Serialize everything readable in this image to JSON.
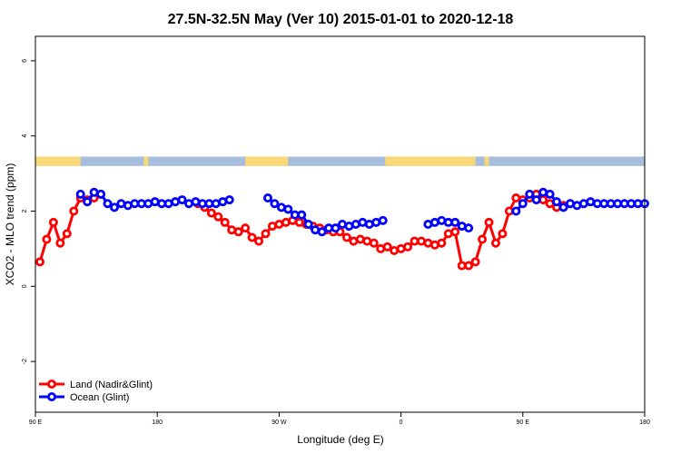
{
  "chart_data": {
    "type": "line",
    "title": "27.5N-32.5N May (Ver 10)   2015-01-01 to 2020-12-18",
    "xlabel": "Longitude (deg E)",
    "ylabel": "XCO2 - MLO trend (ppm)",
    "xlim": [
      -90,
      180
    ],
    "ylim": [
      -3.35,
      6.65
    ],
    "x_ticks": [
      {
        "value": -90,
        "label": "90 E"
      },
      {
        "value": -36,
        "label": "180"
      },
      {
        "value": 18,
        "label": "90 W"
      },
      {
        "value": 72,
        "label": "0"
      },
      {
        "value": 126,
        "label": "90 E"
      },
      {
        "value": 180,
        "label": "180"
      }
    ],
    "y_ticks": [
      {
        "value": -2,
        "label": "-2"
      },
      {
        "value": 0,
        "label": "0"
      },
      {
        "value": 2,
        "label": "2"
      },
      {
        "value": 4,
        "label": "4"
      },
      {
        "value": 6,
        "label": "6"
      }
    ],
    "grid": false,
    "legend_position": "bottom-left",
    "land_ocean_strip": {
      "y_range": [
        3.2,
        3.45
      ],
      "land_color": "#f9d877",
      "ocean_color": "#a6bddd",
      "land_segments": [
        [
          -90,
          -70
        ],
        [
          -42,
          -40
        ],
        [
          3,
          22
        ],
        [
          65,
          105
        ],
        [
          109,
          111
        ]
      ]
    },
    "series": [
      {
        "name": "Land (Nadir&Glint)",
        "color": "#ff0000",
        "x": [
          -88,
          -85,
          -82,
          -79,
          -76,
          -73,
          -70,
          -67,
          -64,
          -61,
          -18,
          -15,
          -12,
          -9,
          -6,
          -3,
          0,
          3,
          6,
          9,
          12,
          15,
          18,
          21,
          24,
          27,
          30,
          33,
          36,
          39,
          42,
          45,
          48,
          51,
          54,
          57,
          60,
          63,
          66,
          69,
          72,
          75,
          78,
          81,
          84,
          87,
          90,
          93,
          96,
          99,
          102,
          105,
          108,
          111,
          114,
          117,
          120,
          123,
          126,
          129,
          132,
          135,
          138,
          141,
          144,
          147
        ],
        "y": [
          0.65,
          1.25,
          1.7,
          1.15,
          1.4,
          2.0,
          2.35,
          2.3,
          2.35,
          2.45,
          2.2,
          2.1,
          1.95,
          1.85,
          1.7,
          1.5,
          1.45,
          1.55,
          1.3,
          1.2,
          1.4,
          1.6,
          1.65,
          1.7,
          1.75,
          1.7,
          1.65,
          1.6,
          1.55,
          1.5,
          1.45,
          1.45,
          1.3,
          1.2,
          1.25,
          1.2,
          1.15,
          1.0,
          1.05,
          0.95,
          1.0,
          1.05,
          1.2,
          1.2,
          1.15,
          1.1,
          1.15,
          1.4,
          1.45,
          0.55,
          0.55,
          0.65,
          1.25,
          1.7,
          1.15,
          1.4,
          2.0,
          2.35,
          2.3,
          2.35,
          2.45,
          2.3,
          2.2,
          2.1,
          2.15,
          2.2
        ]
      },
      {
        "name": "Ocean (Glint)",
        "color": "#0000ff",
        "x": [
          -70,
          -67,
          -64,
          -61,
          -58,
          -55,
          -52,
          -49,
          -46,
          -43,
          -40,
          -37,
          -34,
          -31,
          -28,
          -25,
          -22,
          -19,
          -16,
          -13,
          -10,
          -7,
          -4,
          13,
          16,
          19,
          22,
          25,
          28,
          31,
          34,
          37,
          40,
          43,
          46,
          49,
          52,
          55,
          58,
          61,
          64,
          84,
          87,
          90,
          93,
          96,
          99,
          102,
          123,
          126,
          129,
          132,
          135,
          138,
          141,
          144,
          147,
          150,
          153,
          156,
          159,
          162,
          165,
          168,
          171,
          174,
          177,
          180
        ],
        "y": [
          2.45,
          2.25,
          2.5,
          2.45,
          2.2,
          2.1,
          2.2,
          2.15,
          2.2,
          2.2,
          2.2,
          2.25,
          2.2,
          2.2,
          2.25,
          2.3,
          2.2,
          2.25,
          2.2,
          2.2,
          2.2,
          2.25,
          2.3,
          2.35,
          2.2,
          2.1,
          2.05,
          1.9,
          1.9,
          1.65,
          1.5,
          1.45,
          1.55,
          1.55,
          1.65,
          1.6,
          1.65,
          1.7,
          1.65,
          1.7,
          1.75,
          1.65,
          1.7,
          1.75,
          1.7,
          1.7,
          1.6,
          1.55,
          2.0,
          2.2,
          2.45,
          2.3,
          2.5,
          2.45,
          2.25,
          2.1,
          2.2,
          2.15,
          2.2,
          2.25,
          2.2,
          2.2,
          2.2,
          2.2,
          2.2,
          2.2,
          2.2,
          2.2
        ]
      }
    ]
  }
}
